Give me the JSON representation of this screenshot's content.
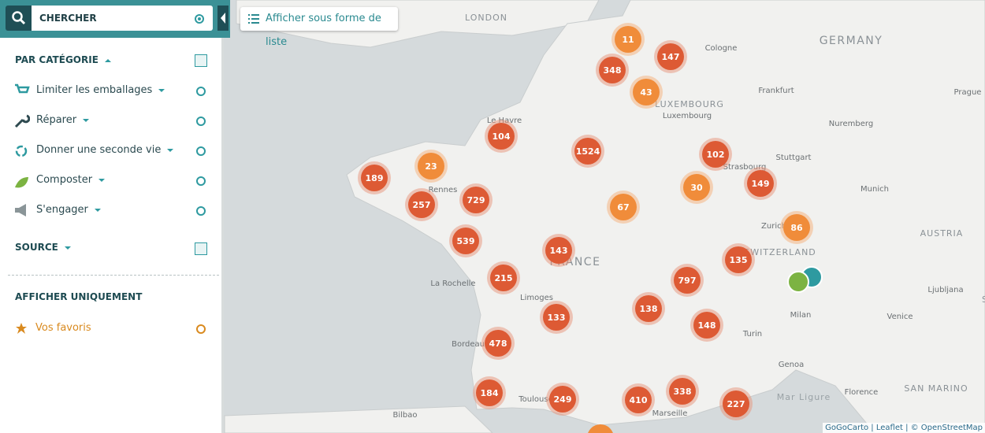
{
  "search": {
    "placeholder": "CHERCHER"
  },
  "list_button": "Afficher sous forme de liste",
  "sidebar": {
    "category_title": "PAR CATÉGORIE",
    "categories": [
      "Limiter les emballages",
      "Réparer",
      "Donner une seconde vie",
      "Composter",
      "S'engager"
    ],
    "source_title": "SOURCE",
    "show_only_title": "AFFICHER UNIQUEMENT",
    "favorites": "Vos favoris"
  },
  "map": {
    "labels": [
      "LONDON",
      "GERMANY",
      "Cologne",
      "LUXEMBOURG",
      "Luxembourg",
      "Frankfurt",
      "Prague",
      "Nuremberg",
      "Stuttgart",
      "Strasbourg",
      "Munich",
      "Zurich",
      "AUSTRIA",
      "SWITZERLAND",
      "FRANCE",
      "Rennes",
      "Le Havre",
      "La Rochelle",
      "Limoges",
      "Bordeaux",
      "Toulouse",
      "Bilbao",
      "Marseille",
      "Milan",
      "Venice",
      "Turin",
      "Genoa",
      "Florence",
      "Ljubljana",
      "SAN MARINO",
      "Mar Ligure",
      "SLOVENIA"
    ],
    "clusters": [
      11,
      147,
      348,
      43,
      104,
      1524,
      102,
      23,
      189,
      30,
      149,
      729,
      257,
      67,
      86,
      539,
      143,
      135,
      215,
      797,
      138,
      133,
      148,
      478,
      184,
      249,
      410,
      338,
      227
    ],
    "attribution": "GoGoCarto | Leaflet | © OpenStreetMap"
  }
}
